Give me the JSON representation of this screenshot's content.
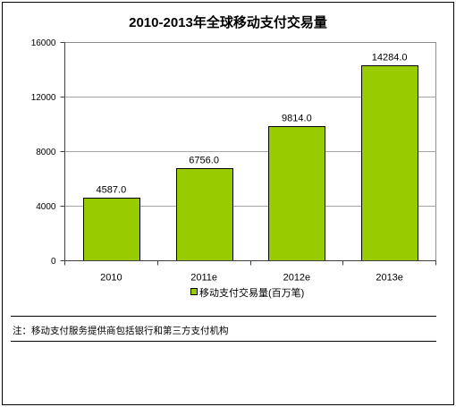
{
  "chart_data": {
    "type": "bar",
    "title": "2010-2013年全球移动支付交易量",
    "categories": [
      "2010",
      "2011e",
      "2012e",
      "2013e"
    ],
    "series": [
      {
        "name": "移动支付交易量(百万笔)",
        "values": [
          4587.0,
          6756.0,
          9814.0,
          14284.0
        ],
        "data_labels": [
          "4587.0",
          "6756.0",
          "9814.0",
          "14284.0"
        ],
        "color": "#99CC00"
      }
    ],
    "ylim": [
      0,
      16000
    ],
    "yticks": [
      0,
      4000,
      8000,
      12000,
      16000
    ],
    "grid": true,
    "legend_position": "bottom"
  },
  "note": "注：移动支付服务提供商包括银行和第三方支付机构"
}
